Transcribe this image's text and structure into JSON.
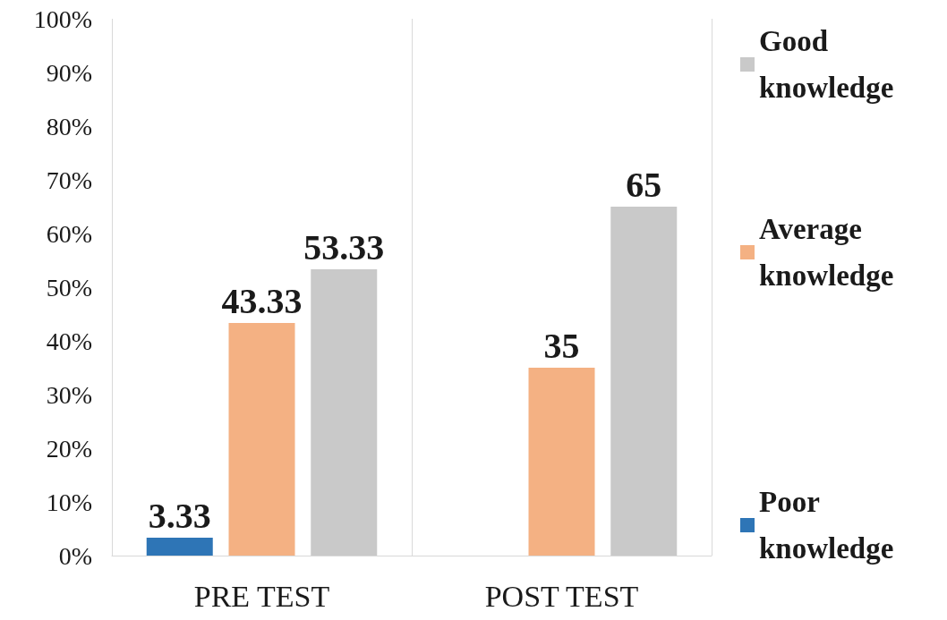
{
  "chart_data": {
    "type": "bar",
    "categories": [
      "PRE TEST",
      "POST TEST"
    ],
    "series": [
      {
        "name": "Poor knowledge",
        "color": "#2e75b6",
        "values": [
          3.33,
          0
        ],
        "value_labels": [
          "3.33",
          null
        ]
      },
      {
        "name": "Average knowledge",
        "color": "#f4b183",
        "values": [
          43.33,
          35
        ],
        "value_labels": [
          "43.33",
          "35"
        ]
      },
      {
        "name": "Good knowledge",
        "color": "#c9c9c9",
        "values": [
          53.33,
          65
        ],
        "value_labels": [
          "53.33",
          "65"
        ]
      }
    ],
    "ylim": [
      0,
      100
    ],
    "yticks": [
      {
        "value": 0,
        "label": "0%"
      },
      {
        "value": 10,
        "label": "10%"
      },
      {
        "value": 20,
        "label": "20%"
      },
      {
        "value": 30,
        "label": "30%"
      },
      {
        "value": 40,
        "label": "40%"
      },
      {
        "value": 50,
        "label": "50%"
      },
      {
        "value": 60,
        "label": "60%"
      },
      {
        "value": 70,
        "label": "70%"
      },
      {
        "value": 80,
        "label": "80%"
      },
      {
        "value": 90,
        "label": "90%"
      },
      {
        "value": 100,
        "label": "100%"
      }
    ],
    "grid": "x",
    "legend": "right"
  }
}
